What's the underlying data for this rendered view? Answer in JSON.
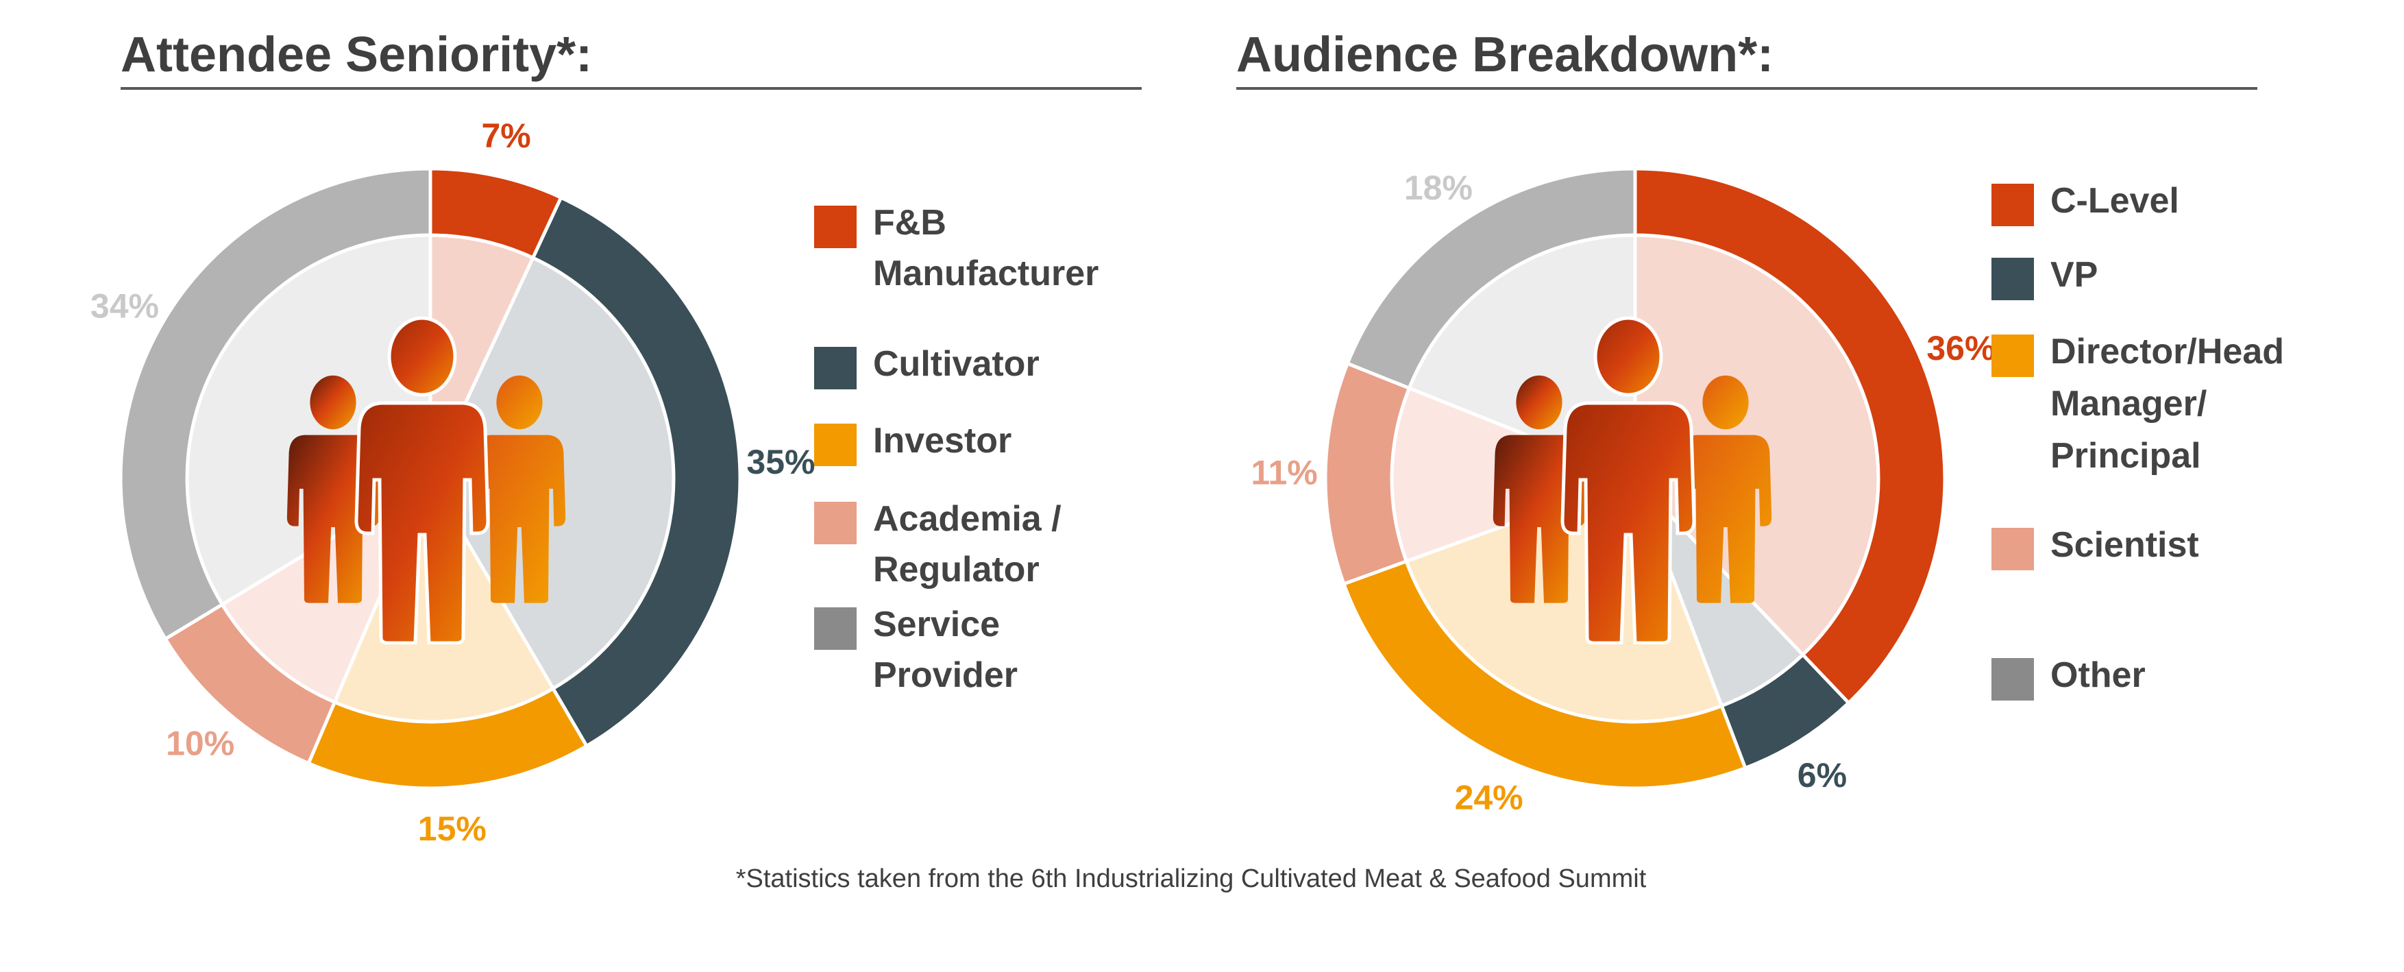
{
  "colors": {
    "orange_red": "#d4400e",
    "dark_slate": "#3a4f57",
    "amber": "#f29a00",
    "salmon": "#e8a088",
    "grey": "#b3b3b3",
    "legend_grey": "#8a8a8a",
    "text": "#434343"
  },
  "footnote": "*Statistics taken from the 6th Industrializing Cultivated Meat & Seafood Summit",
  "chart_data": [
    {
      "type": "pie",
      "title": "Attendee Seniority*:",
      "slices": [
        {
          "label": "F&B Manufacturer",
          "legend_lines": [
            "F&B",
            "Manufacturer"
          ],
          "value": 7,
          "value_label": "7%",
          "color": "#d4400e",
          "legend_color": "#d4400e",
          "inner_color": "#f6d3c9",
          "label_color": "#d4400e"
        },
        {
          "label": "Cultivator",
          "legend_lines": [
            "Cultivator"
          ],
          "value": 35,
          "value_label": "35%",
          "color": "#3a4f57",
          "legend_color": "#3a4f57",
          "inner_color": "#d7dbde",
          "label_color": "#3a4f57"
        },
        {
          "label": "Investor",
          "legend_lines": [
            "Investor"
          ],
          "value": 15,
          "value_label": "15%",
          "color": "#f29a00",
          "legend_color": "#f29a00",
          "inner_color": "#fde9c7",
          "label_color": "#f29a00"
        },
        {
          "label": "Academia / Regulator",
          "legend_lines": [
            "Academia /",
            "Regulator"
          ],
          "value": 10,
          "value_label": "10%",
          "color": "#e8a088",
          "legend_color": "#e8a088",
          "inner_color": "#fbe6e2",
          "label_color": "#e8a088"
        },
        {
          "label": "Service Provider",
          "legend_lines": [
            "Service",
            "Provider"
          ],
          "value": 34,
          "value_label": "34%",
          "color": "#b3b3b3",
          "legend_color": "#8a8a8a",
          "inner_color": "#ededed",
          "label_color": "#c9c9c9"
        }
      ]
    },
    {
      "type": "pie",
      "title": "Audience Breakdown*:",
      "slices": [
        {
          "label": "C-Level",
          "legend_lines": [
            "C-Level"
          ],
          "value": 36,
          "value_label": "36%",
          "color": "#d4400e",
          "legend_color": "#d4400e",
          "inner_color": "#f6d8cf",
          "label_color": "#d4400e"
        },
        {
          "label": "VP",
          "legend_lines": [
            "VP"
          ],
          "value": 6,
          "value_label": "6%",
          "color": "#3a4f57",
          "legend_color": "#3a4f57",
          "inner_color": "#d7dbde",
          "label_color": "#3a4f57"
        },
        {
          "label": "Director/Head Manager/ Principal",
          "legend_lines": [
            "Director/Head",
            "Manager/",
            "Principal"
          ],
          "value": 24,
          "value_label": "24%",
          "color": "#f29a00",
          "legend_color": "#f29a00",
          "inner_color": "#fde9c7",
          "label_color": "#f29a00"
        },
        {
          "label": "Scientist",
          "legend_lines": [
            "Scientist"
          ],
          "value": 11,
          "value_label": "11%",
          "color": "#e8a088",
          "legend_color": "#e8a088",
          "inner_color": "#fbe6e2",
          "label_color": "#e8a088"
        },
        {
          "label": "Other",
          "legend_lines": [
            "Other"
          ],
          "value": 18,
          "value_label": "18%",
          "color": "#b3b3b3",
          "legend_color": "#8a8a8a",
          "inner_color": "#ededed",
          "label_color": "#c9c9c9"
        }
      ]
    }
  ]
}
